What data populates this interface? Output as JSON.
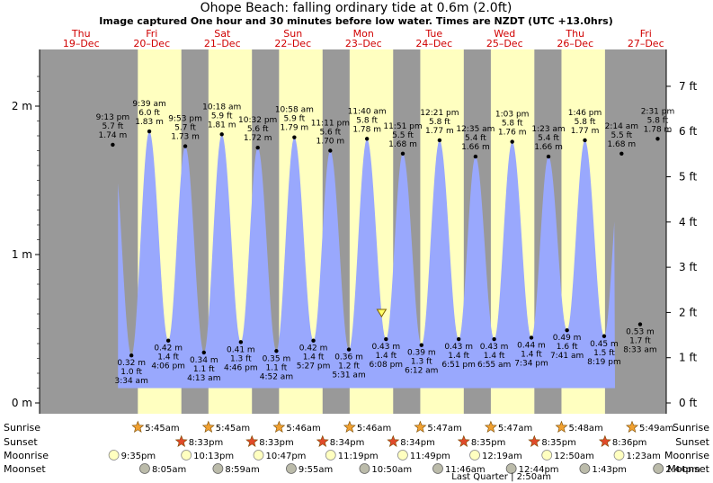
{
  "title": "Ohope Beach: falling  ordinary tide at 0.6m (2.0ft)",
  "subtitle": "Image captured One hour and 30 minutes before low water. Times are NZDT (UTC +13.0hrs)",
  "days": [
    {
      "dow": "Thu",
      "date": "19–Dec"
    },
    {
      "dow": "Fri",
      "date": "20–Dec"
    },
    {
      "dow": "Sat",
      "date": "21–Dec"
    },
    {
      "dow": "Sun",
      "date": "22–Dec"
    },
    {
      "dow": "Mon",
      "date": "23–Dec"
    },
    {
      "dow": "Tue",
      "date": "24–Dec"
    },
    {
      "dow": "Wed",
      "date": "25–Dec"
    },
    {
      "dow": "Thu",
      "date": "26–Dec"
    },
    {
      "dow": "Fri",
      "date": "27–Dec"
    }
  ],
  "chart_data": {
    "type": "area",
    "title": "Ohope Beach: falling  ordinary tide at 0.6m (2.0ft)",
    "ylabel_left_unit": "m",
    "ylabel_right_unit": "ft",
    "y_ticks_m": [
      0,
      1,
      2
    ],
    "y_ticks_ft": [
      0,
      1,
      2,
      3,
      4,
      5,
      6,
      7
    ],
    "ylim_m": [
      -0.05,
      2.38
    ],
    "x_range_days": [
      "19-Dec 11:00pm",
      "27-Dec 12:00am"
    ],
    "fill_color": "#99a8fd",
    "day_color": "#ffffc0",
    "night_color": "#999999",
    "current_level_m": 0.6,
    "tides": [
      {
        "type": "high",
        "time": "9:13 pm",
        "ft": "5.7 ft",
        "m": 1.74
      },
      {
        "type": "low",
        "time": "3:34 am",
        "ft": "1.0 ft",
        "m": 0.32
      },
      {
        "type": "high",
        "time": "9:39 am",
        "ft": "6.0 ft",
        "m": 1.83
      },
      {
        "type": "low",
        "time": "4:06 pm",
        "ft": "1.4 ft",
        "m": 0.42
      },
      {
        "type": "high",
        "time": "9:53 pm",
        "ft": "5.7 ft",
        "m": 1.73
      },
      {
        "type": "low",
        "time": "4:13 am",
        "ft": "1.1 ft",
        "m": 0.34
      },
      {
        "type": "high",
        "time": "10:18 am",
        "ft": "5.9 ft",
        "m": 1.81
      },
      {
        "type": "low",
        "time": "4:46 pm",
        "ft": "1.3 ft",
        "m": 0.41
      },
      {
        "type": "high",
        "time": "10:32 pm",
        "ft": "5.6 ft",
        "m": 1.72
      },
      {
        "type": "low",
        "time": "4:52 am",
        "ft": "1.1 ft",
        "m": 0.35
      },
      {
        "type": "high",
        "time": "10:58 am",
        "ft": "5.9 ft",
        "m": 1.79
      },
      {
        "type": "low",
        "time": "5:27 pm",
        "ft": "1.4 ft",
        "m": 0.42
      },
      {
        "type": "high",
        "time": "11:11 pm",
        "ft": "5.6 ft",
        "m": 1.7
      },
      {
        "type": "low",
        "time": "5:31 am",
        "ft": "1.2 ft",
        "m": 0.36
      },
      {
        "type": "high",
        "time": "11:40 am",
        "ft": "5.8 ft",
        "m": 1.78
      },
      {
        "type": "low",
        "time": "6:08 pm",
        "ft": "1.4 ft",
        "m": 0.43
      },
      {
        "type": "high",
        "time": "11:51 pm",
        "ft": "5.5 ft",
        "m": 1.68
      },
      {
        "type": "low",
        "time": "6:12 am",
        "ft": "1.3 ft",
        "m": 0.39
      },
      {
        "type": "high",
        "time": "12:21 pm",
        "ft": "5.8 ft",
        "m": 1.77
      },
      {
        "type": "low",
        "time": "6:51 pm",
        "ft": "1.4 ft",
        "m": 0.43
      },
      {
        "type": "high",
        "time": "12:35 am",
        "ft": "5.4 ft",
        "m": 1.66
      },
      {
        "type": "low",
        "time": "6:55 am",
        "ft": "1.4 ft",
        "m": 0.43
      },
      {
        "type": "high",
        "time": "1:03 pm",
        "ft": "5.8 ft",
        "m": 1.76
      },
      {
        "type": "low",
        "time": "7:34 pm",
        "ft": "1.4 ft",
        "m": 0.44
      },
      {
        "type": "high",
        "time": "1:23 am",
        "ft": "5.4 ft",
        "m": 1.66
      },
      {
        "type": "low",
        "time": "7:41 am",
        "ft": "1.6 ft",
        "m": 0.49
      },
      {
        "type": "high",
        "time": "1:46 pm",
        "ft": "5.8 ft",
        "m": 1.77
      },
      {
        "type": "low",
        "time": "8:19 pm",
        "ft": "1.5 ft",
        "m": 0.45
      },
      {
        "type": "high",
        "time": "2:14 am",
        "ft": "5.5 ft",
        "m": 1.68
      },
      {
        "type": "low",
        "time": "8:33 am",
        "ft": "1.7 ft",
        "m": 0.53
      },
      {
        "type": "high",
        "time": "2:31 pm",
        "ft": "5.8 ft",
        "m": 1.78
      }
    ]
  },
  "legend_labels": {
    "sunrise": "Sunrise",
    "sunset": "Sunset",
    "moonrise": "Moonrise",
    "moonset": "Moonset"
  },
  "sunrise": [
    "5:45am",
    "5:45am",
    "5:46am",
    "5:46am",
    "5:47am",
    "5:47am",
    "5:48am",
    "5:49am"
  ],
  "sunset": [
    "8:33pm",
    "8:33pm",
    "8:34pm",
    "8:34pm",
    "8:35pm",
    "8:35pm",
    "8:36pm"
  ],
  "moonrise": [
    "9:35pm",
    "10:13pm",
    "10:47pm",
    "11:19pm",
    "11:49pm",
    "12:19am",
    "12:50am",
    "1:23am"
  ],
  "moonset": [
    "8:05am",
    "8:59am",
    "9:55am",
    "10:50am",
    "11:46am",
    "12:44pm",
    "1:43pm",
    "2:44pm"
  ],
  "moon_phase": "Last Quarter | 2:50am"
}
